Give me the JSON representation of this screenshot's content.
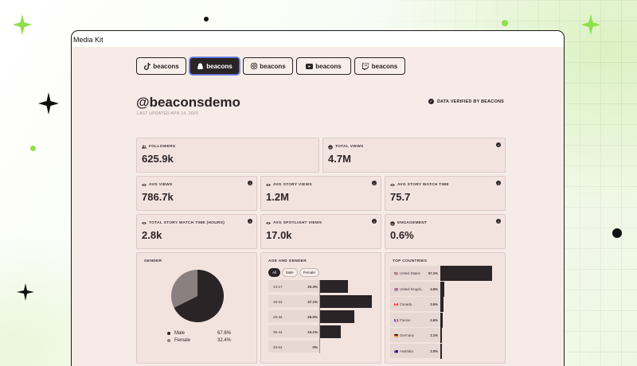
{
  "window": {
    "title": "Media Kit"
  },
  "tabs": [
    {
      "id": "tiktok",
      "icon": "tiktok-icon",
      "label": "beacons",
      "active": false
    },
    {
      "id": "snapchat",
      "icon": "snapchat-ghost-icon",
      "label": "beacons",
      "active": true
    },
    {
      "id": "instagram",
      "icon": "instagram-icon",
      "label": "beacons",
      "active": false
    },
    {
      "id": "youtube",
      "icon": "youtube-icon",
      "label": "beacons",
      "active": false
    },
    {
      "id": "twitch",
      "icon": "twitch-icon",
      "label": "beacons",
      "active": false
    }
  ],
  "profile": {
    "handle": "@beaconsdemo",
    "updated": "LAST UPDATED APR 14, 2025",
    "verified": "DATA VERIFIED BY BEACONS"
  },
  "stats": {
    "followers": {
      "label": "FOLLOWERS",
      "value": "625.9k",
      "icon": "people-icon"
    },
    "total_views": {
      "label": "TOTAL VIEWS",
      "value": "4.7M",
      "icon": "smile-icon"
    },
    "avg_views": {
      "label": "AVG VIEWS",
      "value": "786.7k",
      "icon": "eye-icon"
    },
    "avg_story_views": {
      "label": "AVG STORY VIEWS",
      "value": "1.2M",
      "icon": "eye-icon"
    },
    "avg_story_watch_time": {
      "label": "AVG STORY WATCH TIME",
      "value": "75.7",
      "icon": "eye-icon"
    },
    "total_story_watch_time": {
      "label": "TOTAL STORY WATCH TIME (HOURS)",
      "value": "2.8k",
      "icon": "eye-icon"
    },
    "avg_spotlight_views": {
      "label": "AVG SPOTLIGHT VIEWS",
      "value": "17.0k",
      "icon": "eye-icon"
    },
    "engagement": {
      "label": "ENGAGEMENT",
      "value": "0.6%",
      "icon": "smile-icon"
    },
    "info_glyph": "i"
  },
  "gender": {
    "title": "GENDER",
    "items": [
      {
        "name": "Male",
        "pct": "67.6%",
        "value": 67.6,
        "color": "#2b2426"
      },
      {
        "name": "Female",
        "pct": "32.4%",
        "value": 32.4,
        "color": "#8a8080"
      }
    ]
  },
  "age_gender": {
    "title": "AGE AND GENDER",
    "filters": [
      {
        "label": "All",
        "active": true
      },
      {
        "label": "Male",
        "active": false
      },
      {
        "label": "Female",
        "active": false
      }
    ],
    "rows": [
      {
        "range": "13-17",
        "pct": "20.3%",
        "value": 20.3
      },
      {
        "range": "18-24",
        "pct": "37.1%",
        "value": 37.1
      },
      {
        "range": "25-34",
        "pct": "25.0%",
        "value": 25.0
      },
      {
        "range": "35-44",
        "pct": "15.1%",
        "value": 15.1
      },
      {
        "range": "45-54",
        "pct": "0%",
        "value": 0
      }
    ]
  },
  "countries": {
    "title": "TOP COUNTRIES",
    "rows": [
      {
        "flag": "🇺🇸",
        "name": "United States",
        "pct": "57.1%",
        "value": 57.1
      },
      {
        "flag": "🇬🇧",
        "name": "United Kingdo...",
        "pct": "4.6%",
        "value": 4.6
      },
      {
        "flag": "🇨🇦",
        "name": "Canada",
        "pct": "3.5%",
        "value": 3.5
      },
      {
        "flag": "🇫🇷",
        "name": "France",
        "pct": "2.6%",
        "value": 2.6
      },
      {
        "flag": "🇩🇪",
        "name": "Germany",
        "pct": "2.1%",
        "value": 2.1
      },
      {
        "flag": "🇦🇺",
        "name": "Australia",
        "pct": "2.0%",
        "value": 2.0
      }
    ]
  },
  "colors": {
    "accent": "#2b2426",
    "card": "#f3e3df",
    "page": "#f6ebe7",
    "sparkle": "#8fe04a"
  }
}
